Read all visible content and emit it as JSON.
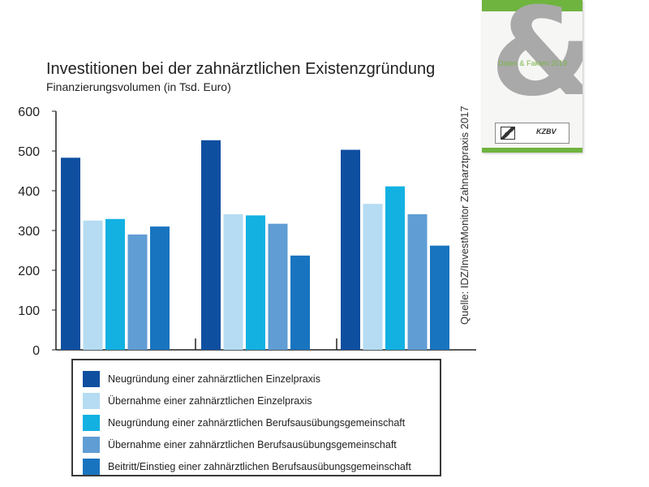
{
  "chart_data": {
    "type": "bar",
    "title": "Investitionen bei der zahnärztlichen Existenzgründung",
    "subtitle": "Finanzierungsvolumen (in Tsd. Euro)",
    "ylim": [
      0,
      600
    ],
    "yticks": [
      0,
      100,
      200,
      300,
      400,
      500,
      600
    ],
    "grid": false,
    "legend_position": "bottom",
    "source": "Quelle: IDZ/InvestMonitor Zahnarztpraxis 2017",
    "categories": [
      "",
      "",
      ""
    ],
    "series": [
      {
        "name": "Neugründung einer zahnärztlichen Einzelpraxis",
        "color": "#0f4fa0",
        "values": [
          483,
          527,
          503
        ]
      },
      {
        "name": "Übernahme einer zahnärztlichen Einzelpraxis",
        "color": "#b5dcf2",
        "values": [
          325,
          341,
          367
        ]
      },
      {
        "name": "Neugründung einer zahnärztlichen Berufsausübungsgemeinschaft",
        "color": "#13b1e2",
        "values": [
          329,
          338,
          411
        ]
      },
      {
        "name": "Übernahme einer zahnärztlichen Berufsausübungsgemeinschaft",
        "color": "#5f9dd4",
        "values": [
          290,
          317,
          341
        ]
      },
      {
        "name": "Beitritt/Einstieg einer zahnärztlichen Berufsausübungsgemeinschaft",
        "color": "#1974bf",
        "values": [
          310,
          237,
          262
        ]
      }
    ]
  },
  "brochure": {
    "cover_title": "Daten & Fakten 2019",
    "symbol": "&",
    "logo_text": "KZBV"
  }
}
